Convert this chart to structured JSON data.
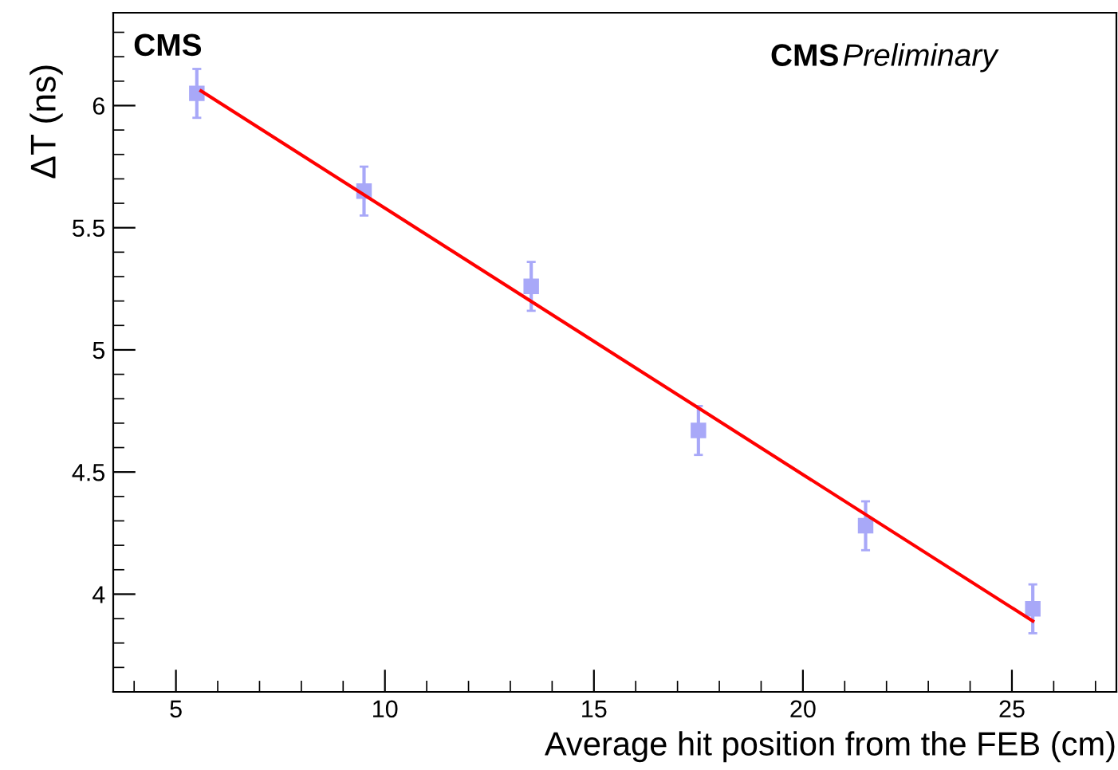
{
  "chart_data": {
    "type": "scatter",
    "xlabel": "Average hit position from the FEB (cm)",
    "ylabel": "ΔT (ns)",
    "annotations": [
      "CMS",
      "CMS Preliminary"
    ],
    "xlim": [
      3.5,
      27.5
    ],
    "xticks": [
      5,
      10,
      15,
      20,
      25
    ],
    "ylim": [
      3.6,
      6.38
    ],
    "yticks": [
      4,
      4.5,
      5,
      5.5,
      6
    ],
    "grid": false,
    "legend": false,
    "series": [
      {
        "color": "#a8a8f8",
        "marker": "square",
        "x": [
          5.5,
          9.5,
          13.5,
          17.5,
          21.5,
          25.5
        ],
        "values": [
          6.05,
          5.65,
          5.26,
          4.67,
          4.28,
          3.94
        ],
        "errors": [
          0.1,
          0.1,
          0.1,
          0.1,
          0.1,
          0.1
        ]
      },
      {
        "type": "line",
        "color": "#ff0000",
        "marker": "none",
        "line_style": "solid",
        "x": [
          5.6,
          25.5
        ],
        "values": [
          6.06,
          3.89
        ]
      }
    ]
  }
}
